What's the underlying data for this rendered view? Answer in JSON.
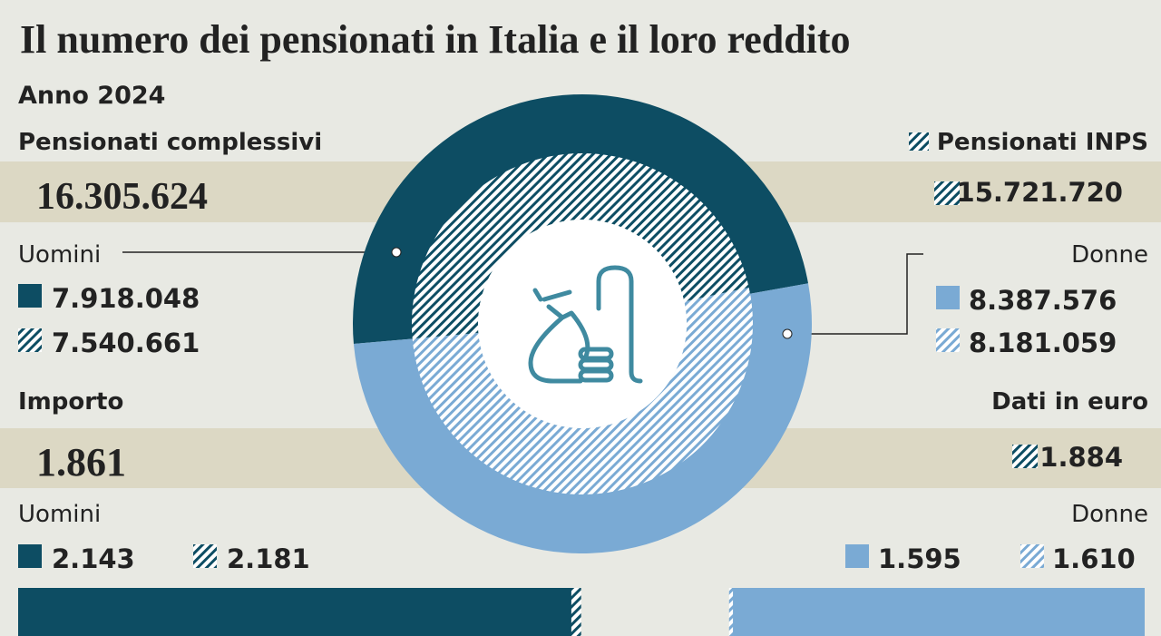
{
  "title": "Il numero dei pensionati in Italia e il loro reddito",
  "subtitle": "Anno 2024",
  "sections": {
    "count": {
      "label": "Pensionati complessivi",
      "total": "16.305.624",
      "inps_label": "Pensionati INPS",
      "inps_total": "15.721.720"
    },
    "amount": {
      "label": "Importo",
      "total": "1.861",
      "unit_label": "Dati in euro",
      "inps_total": "1.884"
    }
  },
  "chart_data": [
    {
      "type": "donut",
      "categories": [
        "Uomini",
        "Donne"
      ],
      "colors": [
        "#0d4d63",
        "#7aaad4"
      ],
      "series": [
        {
          "hatched": false,
          "values": [
            7918048,
            8387576
          ],
          "value_labels": [
            "7.918.048",
            "8.387.576"
          ]
        },
        {
          "hatched": true,
          "values": [
            7540661,
            8181059
          ],
          "value_labels": [
            "7.540.661",
            "8.181.059"
          ]
        }
      ]
    },
    {
      "type": "bar",
      "categories": [
        "Uomini",
        "Donne"
      ],
      "colors": [
        "#0d4d63",
        "#7aaad4"
      ],
      "series": [
        {
          "hatched": false,
          "values": [
            2143,
            1595
          ],
          "value_labels": [
            "2.143",
            "1.595"
          ]
        },
        {
          "hatched": true,
          "values": [
            2181,
            1610
          ],
          "value_labels": [
            "2.181",
            "1.610"
          ]
        }
      ]
    }
  ]
}
